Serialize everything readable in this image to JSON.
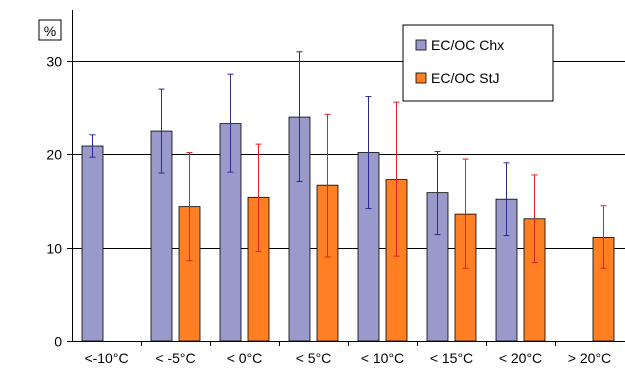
{
  "chart_data": {
    "type": "bar",
    "unit_label": "%",
    "categories": [
      "<-10°C",
      "< -5°C",
      "< 0°C",
      "< 5°C",
      "< 10°C",
      "< 15°C",
      "< 20°C",
      "> 20°C"
    ],
    "ylim": [
      0,
      35
    ],
    "yticks": [
      0,
      10,
      20,
      30
    ],
    "grid": true,
    "legend_position": "top-right",
    "series": [
      {
        "name": "EC/OC Chx",
        "color": "#9999cc",
        "error_color": "#2a2a8a",
        "values": [
          20.9,
          22.5,
          23.3,
          24.0,
          20.2,
          15.9,
          15.2,
          null
        ],
        "err_low": [
          19.7,
          18.0,
          18.1,
          17.1,
          14.2,
          11.4,
          11.3,
          null
        ],
        "err_high": [
          22.1,
          27.0,
          28.6,
          31.0,
          26.2,
          20.3,
          19.1,
          null
        ]
      },
      {
        "name": "EC/OC StJ",
        "color": "#ff7f22",
        "error_color": "#dd2222",
        "values": [
          null,
          14.4,
          15.4,
          16.7,
          17.3,
          13.6,
          13.1,
          11.1
        ],
        "err_low": [
          null,
          8.6,
          9.6,
          9.0,
          9.1,
          7.8,
          8.4,
          7.8
        ],
        "err_high": [
          null,
          20.2,
          21.1,
          24.3,
          25.6,
          19.5,
          17.8,
          14.5
        ]
      }
    ]
  }
}
